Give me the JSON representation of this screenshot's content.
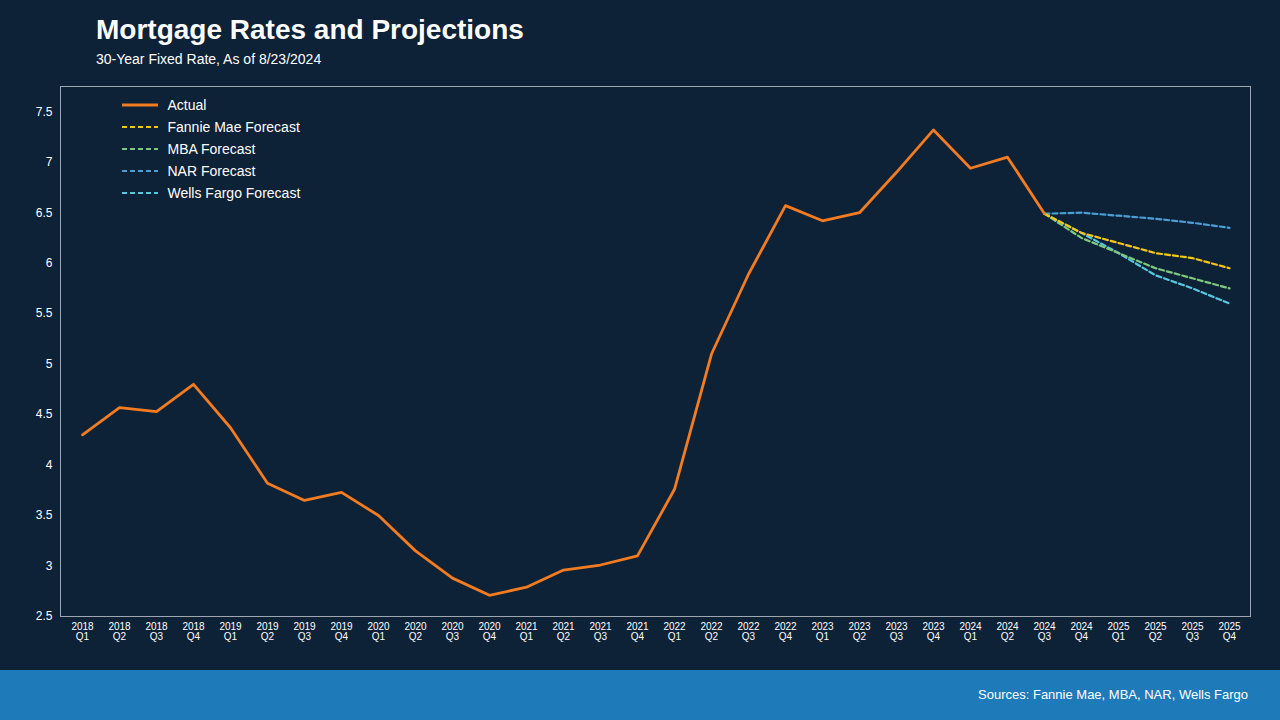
{
  "chart_data": {
    "type": "line",
    "title": "Mortgage Rates and Projections",
    "subtitle": "30-Year Fixed Rate, As of 8/23/2024",
    "source": "Sources: Fannie Mae, MBA, NAR, Wells Fargo",
    "categories": [
      "2018\nQ1",
      "2018\nQ2",
      "2018\nQ3",
      "2018\nQ4",
      "2019\nQ1",
      "2019\nQ2",
      "2019\nQ3",
      "2019\nQ4",
      "2020\nQ1",
      "2020\nQ2",
      "2020\nQ3",
      "2020\nQ4",
      "2021\nQ1",
      "2021\nQ2",
      "2021\nQ3",
      "2021\nQ4",
      "2022\nQ1",
      "2022\nQ2",
      "2022\nQ3",
      "2022\nQ4",
      "2023\nQ1",
      "2023\nQ2",
      "2023\nQ3",
      "2023\nQ4",
      "2024\nQ1",
      "2024\nQ2",
      "2024\nQ3",
      "2024\nQ4",
      "2025\nQ1",
      "2025\nQ2",
      "2025\nQ3",
      "2025\nQ4"
    ],
    "series": [
      {
        "name": "Actual",
        "color": "#f47c20",
        "line_style": "solid",
        "values": [
          4.3,
          4.57,
          4.53,
          4.8,
          4.37,
          3.82,
          3.65,
          3.73,
          3.5,
          3.15,
          2.88,
          2.71,
          2.79,
          2.96,
          3.01,
          3.1,
          3.76,
          5.1,
          5.89,
          6.57,
          6.42,
          6.5,
          6.9,
          7.32,
          6.94,
          7.05,
          6.49,
          null,
          null,
          null,
          null,
          null
        ]
      },
      {
        "name": "Fannie Mae Forecast",
        "color": "#f5c518",
        "line_style": "dashed",
        "values": [
          null,
          null,
          null,
          null,
          null,
          null,
          null,
          null,
          null,
          null,
          null,
          null,
          null,
          null,
          null,
          null,
          null,
          null,
          null,
          null,
          null,
          null,
          null,
          null,
          null,
          null,
          6.49,
          6.3,
          6.2,
          6.1,
          6.05,
          5.95
        ]
      },
      {
        "name": "MBA Forecast",
        "color": "#7fc97f",
        "line_style": "dashed",
        "values": [
          null,
          null,
          null,
          null,
          null,
          null,
          null,
          null,
          null,
          null,
          null,
          null,
          null,
          null,
          null,
          null,
          null,
          null,
          null,
          null,
          null,
          null,
          null,
          null,
          null,
          null,
          6.49,
          6.25,
          6.1,
          5.95,
          5.85,
          5.75
        ]
      },
      {
        "name": "NAR Forecast",
        "color": "#4a9fd4",
        "line_style": "dashed",
        "values": [
          null,
          null,
          null,
          null,
          null,
          null,
          null,
          null,
          null,
          null,
          null,
          null,
          null,
          null,
          null,
          null,
          null,
          null,
          null,
          null,
          null,
          null,
          null,
          null,
          null,
          null,
          6.49,
          6.5,
          6.47,
          6.44,
          6.4,
          6.35
        ]
      },
      {
        "name": "Wells Fargo Forecast",
        "color": "#56c8e0",
        "line_style": "dashed",
        "values": [
          null,
          null,
          null,
          null,
          null,
          null,
          null,
          null,
          null,
          null,
          null,
          null,
          null,
          null,
          null,
          null,
          null,
          null,
          null,
          null,
          null,
          null,
          null,
          null,
          null,
          null,
          6.49,
          6.3,
          6.1,
          5.88,
          5.75,
          5.6
        ]
      }
    ],
    "ylim": [
      2.5,
      7.75
    ],
    "yticks": [
      2.5,
      3,
      3.5,
      4,
      4.5,
      5,
      5.5,
      6,
      6.5,
      7,
      7.5
    ],
    "grid": false,
    "legend": "upper left"
  }
}
